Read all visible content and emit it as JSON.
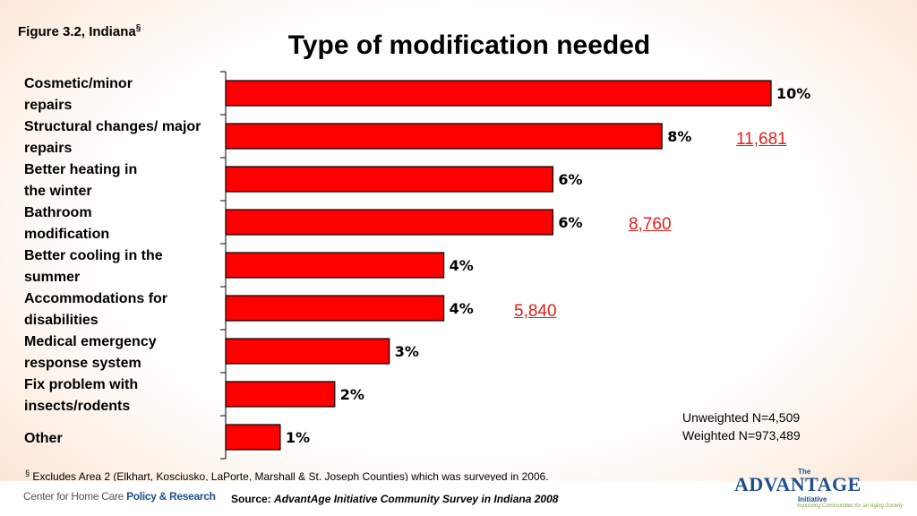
{
  "figure_label": "Figure 3.2, Indiana",
  "figure_mark": "§",
  "title": "Type of modification needed",
  "chart_data": {
    "type": "bar",
    "orientation": "horizontal",
    "title": "Type of modification needed",
    "categories": [
      [
        "Cosmetic/minor",
        "repairs"
      ],
      [
        "Structural changes/ major",
        "repairs"
      ],
      [
        "Better heating in",
        "the winter"
      ],
      [
        "Bathroom",
        "modification"
      ],
      [
        "Better cooling in the",
        "summer"
      ],
      [
        "Accommodations for",
        "disabilities"
      ],
      [
        "Medical emergency",
        "response system"
      ],
      [
        "Fix problem with",
        "insects/rodents"
      ],
      [
        "Other"
      ]
    ],
    "values": [
      10,
      8,
      6,
      6,
      4,
      4,
      3,
      2,
      1
    ],
    "value_labels": [
      "10%",
      "8%",
      "6%",
      "6%",
      "4%",
      "4%",
      "3%",
      "2%",
      "1%"
    ],
    "xlim": [
      0,
      10
    ],
    "bar_color": "#ff0000",
    "grid": false,
    "legend": "none"
  },
  "annotations": [
    {
      "text": "11,681"
    },
    {
      "text": "8,760"
    },
    {
      "text": "5,840"
    }
  ],
  "stats": {
    "unweighted": "Unweighted N=4,509",
    "weighted": "Weighted N=973,489"
  },
  "footnote": {
    "mark": "§",
    "text": "Excludes Area 2 (Elkhart, Kosciusko, LaPorte, Marshall & St. Joseph Counties) which was surveyed in 2006."
  },
  "source": {
    "prefix": "Source:",
    "text": "AdvantAge Initiative Community Survey in Indiana 2008"
  },
  "logos": {
    "chcp": {
      "part1": "Center for Home Care ",
      "part2": "Policy & Research"
    },
    "advantage": {
      "the": "The",
      "name": "ADVANTAGE",
      "initiative": "Initiative",
      "tagline": "Improving Communities for an Aging Society"
    }
  },
  "colors": {
    "accent": "#e0201b",
    "brand_blue": "#1e4f8c"
  }
}
